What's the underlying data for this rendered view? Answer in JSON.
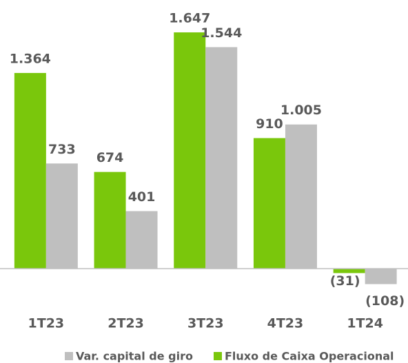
{
  "chart_data": {
    "type": "bar",
    "categories": [
      "1T23",
      "2T23",
      "3T23",
      "4T23",
      "1T24"
    ],
    "series": [
      {
        "name": "Var. capital de giro",
        "color": "#bfbfbf",
        "values": [
          733,
          401,
          1544,
          1005,
          -108
        ],
        "value_labels": [
          "733",
          "401",
          "1.544",
          "1.005",
          "(108)"
        ]
      },
      {
        "name": "Fluxo de Caixa Operacional",
        "color": "#7ac70c",
        "values": [
          1364,
          674,
          1647,
          910,
          -31
        ],
        "value_labels": [
          "1.364",
          "674",
          "1.647",
          "910",
          "(31)"
        ]
      }
    ]
  }
}
